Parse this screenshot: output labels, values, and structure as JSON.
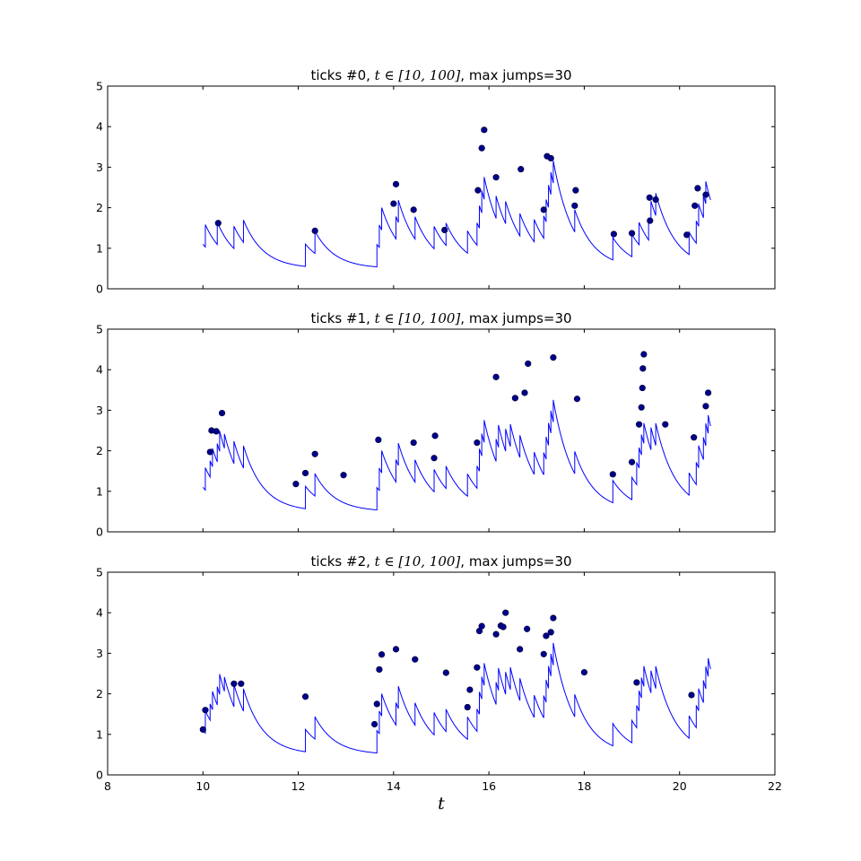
{
  "figure": {
    "xlabel": "t"
  },
  "chart_data": [
    {
      "type": "line",
      "title_prefix": "ticks #0, ",
      "title_math": "t ∈ [10, 100]",
      "title_suffix": ", max jumps=30",
      "xlim": [
        8,
        22
      ],
      "ylim": [
        0,
        5
      ],
      "xticks": [
        8,
        10,
        12,
        14,
        16,
        18,
        20,
        22
      ],
      "yticks": [
        0,
        1,
        2,
        3,
        4,
        5
      ],
      "grid": false,
      "line_color": "#0000ff",
      "marker_color": "#00008b",
      "decay_rate": 2.4,
      "baseline": 0.5,
      "t_start": 10.0,
      "y_start": 1.1,
      "t_end": 20.65,
      "jumps": [
        [
          10.05,
          0.55
        ],
        [
          10.3,
          0.55
        ],
        [
          10.65,
          0.55
        ],
        [
          10.85,
          0.55
        ],
        [
          12.15,
          0.55
        ],
        [
          12.35,
          0.55
        ],
        [
          13.65,
          0.55
        ],
        [
          13.7,
          0.55
        ],
        [
          13.75,
          0.55
        ],
        [
          14.05,
          0.55
        ],
        [
          14.1,
          0.55
        ],
        [
          14.45,
          0.55
        ],
        [
          14.85,
          0.55
        ],
        [
          15.1,
          0.55
        ],
        [
          15.55,
          0.55
        ],
        [
          15.75,
          0.55
        ],
        [
          15.8,
          0.55
        ],
        [
          15.85,
          0.55
        ],
        [
          15.9,
          0.55
        ],
        [
          16.15,
          0.55
        ],
        [
          16.35,
          0.55
        ],
        [
          16.65,
          0.55
        ],
        [
          16.95,
          0.55
        ],
        [
          17.15,
          0.55
        ],
        [
          17.2,
          0.55
        ],
        [
          17.25,
          0.55
        ],
        [
          17.3,
          0.55
        ],
        [
          17.35,
          0.55
        ],
        [
          17.8,
          0.55
        ],
        [
          18.6,
          0.55
        ],
        [
          19.0,
          0.55
        ],
        [
          19.15,
          0.55
        ],
        [
          19.35,
          0.55
        ],
        [
          19.4,
          0.55
        ],
        [
          19.5,
          0.55
        ],
        [
          20.2,
          0.55
        ],
        [
          20.35,
          0.55
        ],
        [
          20.4,
          0.55
        ],
        [
          20.5,
          0.55
        ],
        [
          20.55,
          0.55
        ]
      ],
      "points": [
        [
          10.32,
          1.62
        ],
        [
          12.35,
          1.43
        ],
        [
          14.0,
          2.1
        ],
        [
          14.05,
          2.58
        ],
        [
          14.42,
          1.95
        ],
        [
          15.07,
          1.45
        ],
        [
          15.77,
          2.43
        ],
        [
          15.85,
          3.47
        ],
        [
          15.9,
          3.92
        ],
        [
          16.15,
          2.75
        ],
        [
          16.67,
          2.95
        ],
        [
          17.15,
          1.95
        ],
        [
          17.22,
          3.27
        ],
        [
          17.3,
          3.22
        ],
        [
          17.8,
          2.05
        ],
        [
          17.82,
          2.43
        ],
        [
          18.62,
          1.35
        ],
        [
          19.0,
          1.37
        ],
        [
          19.37,
          2.25
        ],
        [
          19.38,
          1.68
        ],
        [
          19.5,
          2.2
        ],
        [
          20.15,
          1.33
        ],
        [
          20.32,
          2.05
        ],
        [
          20.38,
          2.48
        ],
        [
          20.55,
          2.32
        ]
      ]
    },
    {
      "type": "line",
      "title_prefix": "ticks #1, ",
      "title_math": "t ∈ [10, 100]",
      "title_suffix": ", max jumps=30",
      "xlim": [
        8,
        22
      ],
      "ylim": [
        0,
        5
      ],
      "xticks": [
        8,
        10,
        12,
        14,
        16,
        18,
        20,
        22
      ],
      "yticks": [
        0,
        1,
        2,
        3,
        4,
        5
      ],
      "grid": false,
      "line_color": "#0000ff",
      "marker_color": "#00008b",
      "decay_rate": 2.4,
      "baseline": 0.5,
      "t_start": 10.0,
      "y_start": 1.1,
      "t_end": 20.65,
      "jumps": [
        [
          10.05,
          0.55
        ],
        [
          10.15,
          0.4
        ],
        [
          10.2,
          0.45
        ],
        [
          10.3,
          0.45
        ],
        [
          10.35,
          0.5
        ],
        [
          10.45,
          0.35
        ],
        [
          10.65,
          0.55
        ],
        [
          10.85,
          0.55
        ],
        [
          12.15,
          0.55
        ],
        [
          12.35,
          0.55
        ],
        [
          13.65,
          0.55
        ],
        [
          13.7,
          0.55
        ],
        [
          13.75,
          0.55
        ],
        [
          14.05,
          0.55
        ],
        [
          14.1,
          0.55
        ],
        [
          14.45,
          0.55
        ],
        [
          14.85,
          0.55
        ],
        [
          15.1,
          0.55
        ],
        [
          15.55,
          0.55
        ],
        [
          15.75,
          0.55
        ],
        [
          15.8,
          0.55
        ],
        [
          15.85,
          0.55
        ],
        [
          15.9,
          0.55
        ],
        [
          16.15,
          0.55
        ],
        [
          16.2,
          0.55
        ],
        [
          16.35,
          0.55
        ],
        [
          16.45,
          0.55
        ],
        [
          16.65,
          0.55
        ],
        [
          16.95,
          0.55
        ],
        [
          17.15,
          0.55
        ],
        [
          17.2,
          0.55
        ],
        [
          17.25,
          0.55
        ],
        [
          17.3,
          0.55
        ],
        [
          17.35,
          0.55
        ],
        [
          17.8,
          0.55
        ],
        [
          18.6,
          0.55
        ],
        [
          19.0,
          0.55
        ],
        [
          19.1,
          0.55
        ],
        [
          19.15,
          0.5
        ],
        [
          19.2,
          0.5
        ],
        [
          19.25,
          0.5
        ],
        [
          19.4,
          0.55
        ],
        [
          19.5,
          0.55
        ],
        [
          20.2,
          0.55
        ],
        [
          20.35,
          0.55
        ],
        [
          20.4,
          0.55
        ],
        [
          20.5,
          0.55
        ],
        [
          20.55,
          0.55
        ],
        [
          20.6,
          0.45
        ]
      ],
      "points": [
        [
          10.15,
          1.97
        ],
        [
          10.18,
          2.5
        ],
        [
          10.28,
          2.48
        ],
        [
          10.4,
          2.93
        ],
        [
          11.95,
          1.18
        ],
        [
          12.15,
          1.45
        ],
        [
          12.35,
          1.92
        ],
        [
          12.95,
          1.4
        ],
        [
          13.68,
          2.27
        ],
        [
          14.42,
          2.2
        ],
        [
          14.85,
          1.82
        ],
        [
          14.87,
          2.37
        ],
        [
          15.75,
          2.2
        ],
        [
          16.15,
          3.82
        ],
        [
          16.55,
          3.3
        ],
        [
          16.75,
          3.43
        ],
        [
          16.82,
          4.15
        ],
        [
          17.35,
          4.3
        ],
        [
          17.85,
          3.28
        ],
        [
          18.6,
          1.42
        ],
        [
          19.0,
          1.72
        ],
        [
          19.15,
          2.65
        ],
        [
          19.2,
          3.07
        ],
        [
          19.22,
          3.55
        ],
        [
          19.23,
          4.03
        ],
        [
          19.25,
          4.38
        ],
        [
          19.7,
          2.65
        ],
        [
          20.3,
          2.33
        ],
        [
          20.55,
          3.1
        ],
        [
          20.6,
          3.43
        ]
      ]
    },
    {
      "type": "line",
      "title_prefix": "ticks #2, ",
      "title_math": "t ∈ [10, 100]",
      "title_suffix": ", max jumps=30",
      "xlim": [
        8,
        22
      ],
      "ylim": [
        0,
        5
      ],
      "xticks": [
        8,
        10,
        12,
        14,
        16,
        18,
        20,
        22
      ],
      "yticks": [
        0,
        1,
        2,
        3,
        4,
        5
      ],
      "grid": false,
      "line_color": "#0000ff",
      "marker_color": "#00008b",
      "decay_rate": 2.4,
      "baseline": 0.5,
      "t_start": 10.0,
      "y_start": 1.1,
      "t_end": 20.65,
      "jumps": [
        [
          10.05,
          0.55
        ],
        [
          10.15,
          0.4
        ],
        [
          10.2,
          0.45
        ],
        [
          10.3,
          0.45
        ],
        [
          10.35,
          0.5
        ],
        [
          10.45,
          0.35
        ],
        [
          10.65,
          0.55
        ],
        [
          10.85,
          0.55
        ],
        [
          12.15,
          0.55
        ],
        [
          12.35,
          0.55
        ],
        [
          13.65,
          0.55
        ],
        [
          13.7,
          0.55
        ],
        [
          13.75,
          0.55
        ],
        [
          14.05,
          0.55
        ],
        [
          14.1,
          0.55
        ],
        [
          14.45,
          0.55
        ],
        [
          14.85,
          0.55
        ],
        [
          15.1,
          0.55
        ],
        [
          15.55,
          0.55
        ],
        [
          15.75,
          0.55
        ],
        [
          15.8,
          0.55
        ],
        [
          15.85,
          0.55
        ],
        [
          15.9,
          0.55
        ],
        [
          16.15,
          0.55
        ],
        [
          16.2,
          0.55
        ],
        [
          16.35,
          0.55
        ],
        [
          16.45,
          0.55
        ],
        [
          16.65,
          0.55
        ],
        [
          16.95,
          0.55
        ],
        [
          17.15,
          0.55
        ],
        [
          17.2,
          0.55
        ],
        [
          17.25,
          0.55
        ],
        [
          17.3,
          0.55
        ],
        [
          17.35,
          0.55
        ],
        [
          17.8,
          0.55
        ],
        [
          18.6,
          0.55
        ],
        [
          19.0,
          0.55
        ],
        [
          19.1,
          0.55
        ],
        [
          19.15,
          0.5
        ],
        [
          19.2,
          0.5
        ],
        [
          19.25,
          0.5
        ],
        [
          19.4,
          0.55
        ],
        [
          19.5,
          0.55
        ],
        [
          20.2,
          0.55
        ],
        [
          20.35,
          0.55
        ],
        [
          20.4,
          0.55
        ],
        [
          20.5,
          0.55
        ],
        [
          20.55,
          0.55
        ],
        [
          20.6,
          0.45
        ]
      ],
      "points": [
        [
          10.0,
          1.12
        ],
        [
          10.05,
          1.6
        ],
        [
          10.65,
          2.25
        ],
        [
          10.8,
          2.25
        ],
        [
          12.15,
          1.93
        ],
        [
          13.6,
          1.25
        ],
        [
          13.65,
          1.75
        ],
        [
          13.7,
          2.6
        ],
        [
          13.75,
          2.97
        ],
        [
          14.05,
          3.1
        ],
        [
          14.45,
          2.85
        ],
        [
          15.1,
          2.52
        ],
        [
          15.55,
          1.67
        ],
        [
          15.6,
          2.1
        ],
        [
          15.75,
          2.65
        ],
        [
          15.8,
          3.55
        ],
        [
          15.85,
          3.67
        ],
        [
          16.15,
          3.47
        ],
        [
          16.25,
          3.68
        ],
        [
          16.3,
          3.65
        ],
        [
          16.35,
          4.0
        ],
        [
          16.65,
          3.1
        ],
        [
          16.8,
          3.6
        ],
        [
          17.15,
          2.98
        ],
        [
          17.2,
          3.43
        ],
        [
          17.3,
          3.52
        ],
        [
          17.35,
          3.87
        ],
        [
          18.0,
          2.53
        ],
        [
          19.1,
          2.28
        ],
        [
          20.25,
          1.97
        ]
      ]
    }
  ]
}
